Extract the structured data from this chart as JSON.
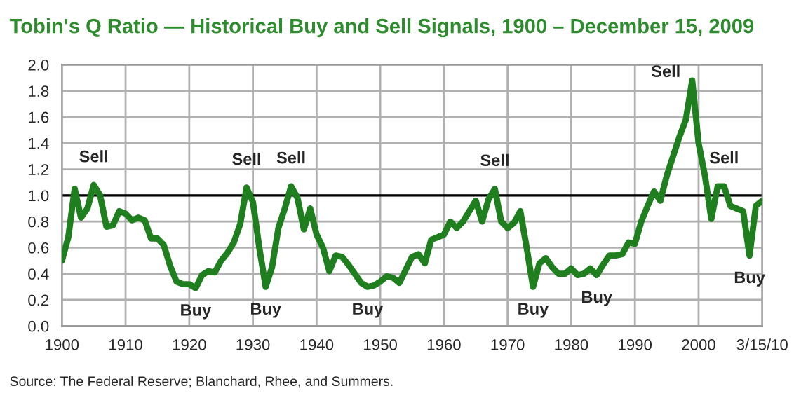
{
  "chart_data": {
    "type": "line",
    "title": "Tobin's Q Ratio — Historical Buy and Sell Signals, 1900 – December 15, 2009",
    "x": [
      1900,
      1901,
      1902,
      1903,
      1904,
      1905,
      1906,
      1907,
      1908,
      1909,
      1910,
      1911,
      1912,
      1913,
      1914,
      1915,
      1916,
      1917,
      1918,
      1919,
      1920,
      1921,
      1922,
      1923,
      1924,
      1925,
      1926,
      1927,
      1928,
      1929,
      1930,
      1931,
      1932,
      1933,
      1934,
      1935,
      1936,
      1937,
      1938,
      1939,
      1940,
      1941,
      1942,
      1943,
      1944,
      1945,
      1946,
      1947,
      1948,
      1949,
      1950,
      1951,
      1952,
      1953,
      1954,
      1955,
      1956,
      1957,
      1958,
      1959,
      1960,
      1961,
      1962,
      1963,
      1964,
      1965,
      1966,
      1967,
      1968,
      1969,
      1970,
      1971,
      1972,
      1973,
      1974,
      1975,
      1976,
      1977,
      1978,
      1979,
      1980,
      1981,
      1982,
      1983,
      1984,
      1985,
      1986,
      1987,
      1988,
      1989,
      1990,
      1991,
      1992,
      1993,
      1994,
      1995,
      1996,
      1997,
      1998,
      1999,
      2000,
      2001,
      2002,
      2003,
      2004,
      2005,
      2006,
      2007,
      2008,
      2009,
      2010
    ],
    "series": [
      {
        "color": "#1f7f1f",
        "values": [
          0.5,
          0.68,
          1.05,
          0.83,
          0.9,
          1.08,
          1.0,
          0.76,
          0.77,
          0.88,
          0.86,
          0.81,
          0.83,
          0.81,
          0.67,
          0.67,
          0.62,
          0.46,
          0.34,
          0.32,
          0.32,
          0.29,
          0.39,
          0.42,
          0.41,
          0.5,
          0.56,
          0.64,
          0.78,
          1.06,
          0.95,
          0.6,
          0.3,
          0.45,
          0.75,
          0.9,
          1.07,
          0.98,
          0.74,
          0.9,
          0.7,
          0.6,
          0.42,
          0.54,
          0.53,
          0.47,
          0.4,
          0.33,
          0.3,
          0.31,
          0.34,
          0.38,
          0.37,
          0.33,
          0.43,
          0.53,
          0.55,
          0.48,
          0.66,
          0.68,
          0.7,
          0.8,
          0.75,
          0.8,
          0.88,
          0.96,
          0.8,
          0.97,
          1.05,
          0.8,
          0.75,
          0.79,
          0.88,
          0.6,
          0.3,
          0.48,
          0.52,
          0.45,
          0.4,
          0.4,
          0.44,
          0.39,
          0.4,
          0.44,
          0.39,
          0.47,
          0.54,
          0.54,
          0.55,
          0.64,
          0.63,
          0.8,
          0.92,
          1.03,
          0.96,
          1.15,
          1.3,
          1.45,
          1.58,
          1.88,
          1.4,
          1.15,
          0.82,
          1.07,
          1.07,
          0.92,
          0.9,
          0.88,
          0.54,
          0.92,
          0.96
        ]
      }
    ],
    "xlim": [
      1900,
      2010
    ],
    "xticks": [
      1900,
      1910,
      1920,
      1930,
      1940,
      1950,
      1960,
      1970,
      1980,
      1990,
      2000,
      {
        "value": 2010,
        "label": "3/15/10"
      }
    ],
    "ylim": [
      0,
      2.0
    ],
    "yticks": [
      {
        "value": 0,
        "label": "0.0"
      },
      {
        "value": 0.2,
        "label": "0.2"
      },
      {
        "value": 0.4,
        "label": "0.4"
      },
      {
        "value": 0.6,
        "label": "0.6"
      },
      {
        "value": 0.8,
        "label": "0.8"
      },
      {
        "value": 1.0,
        "label": "1.0"
      },
      {
        "value": 1.2,
        "label": "1.2"
      },
      {
        "value": 1.4,
        "label": "1.4"
      },
      {
        "value": 1.6,
        "label": "1.6"
      },
      {
        "value": 1.8,
        "label": "1.8"
      },
      {
        "value": 2.0,
        "label": "2.0"
      }
    ],
    "ref_lines": [
      {
        "axis": "y",
        "value": 1.0,
        "color": "#000000"
      }
    ],
    "grid": true,
    "legend": false,
    "annotations": [
      {
        "text": "Sell",
        "x": 1905,
        "y": 1.08
      },
      {
        "text": "Sell",
        "x": 1929,
        "y": 1.06
      },
      {
        "text": "Sell",
        "x": 1936,
        "y": 1.07
      },
      {
        "text": "Sell",
        "x": 1968,
        "y": 1.05
      },
      {
        "text": "Sell",
        "x": 1999,
        "y": 1.88
      },
      {
        "text": "Sell",
        "x": 2004,
        "y": 1.07
      },
      {
        "text": "Buy",
        "x": 1921,
        "y": 0.29
      },
      {
        "text": "Buy",
        "x": 1932,
        "y": 0.3
      },
      {
        "text": "Buy",
        "x": 1948,
        "y": 0.3
      },
      {
        "text": "Buy",
        "x": 1974,
        "y": 0.3
      },
      {
        "text": "Buy",
        "x": 1984,
        "y": 0.39
      },
      {
        "text": "Buy",
        "x": 2008,
        "y": 0.54
      },
      "Source: The Federal Reserve; Blanchard, Rhee, and Summers."
    ]
  }
}
